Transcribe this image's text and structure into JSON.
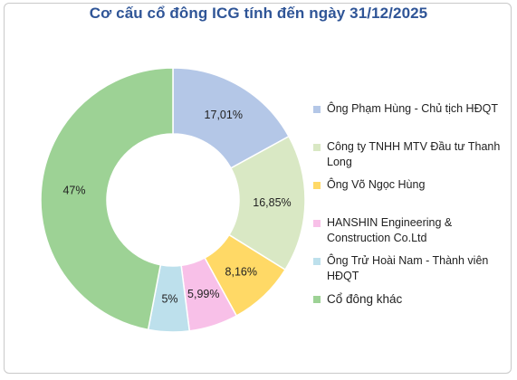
{
  "chart_data": {
    "type": "pie",
    "title": "Cơ cấu cổ đông ICG tính đến ngày 31/12/2025",
    "legend_position": "right",
    "slices": [
      {
        "name": "Ông Phạm Hùng - Chủ tịch HĐQT",
        "value": 17.01,
        "label": "17,01%",
        "color": "#b4c7e7"
      },
      {
        "name": "Công ty TNHH MTV Đầu tư Thanh Long",
        "value": 16.85,
        "label": "16,85%",
        "color": "#d9e8c4"
      },
      {
        "name": "Ông Võ Ngọc Hùng",
        "value": 8.16,
        "label": "8,16%",
        "color": "#ffd966"
      },
      {
        "name": "HANSHIN Engineering & Construction Co.Ltd",
        "value": 5.99,
        "label": "5,99%",
        "color": "#f8c0e8"
      },
      {
        "name": "Ông Trử Hoài Nam - Thành viên HĐQT",
        "value": 5,
        "label": "5%",
        "color": "#bde0ec"
      },
      {
        "name": "Cổ đông khác",
        "value": 47,
        "label": "47%",
        "color": "#9dd295"
      }
    ]
  }
}
